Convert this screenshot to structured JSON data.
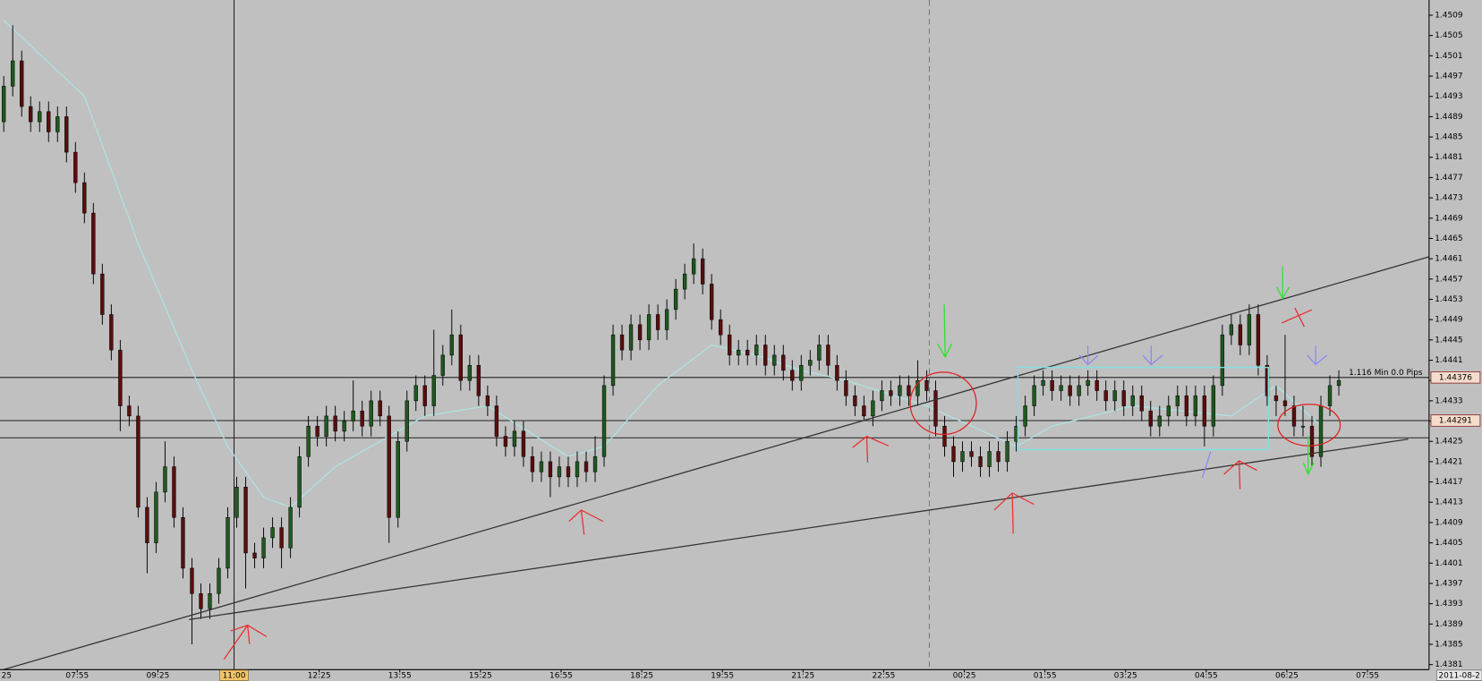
{
  "chart_data": {
    "type": "candlestick",
    "up_color": "#1f5a1f",
    "down_color": "#5c0d0d",
    "open": [
      1.4488,
      1.4495,
      1.45,
      1.4491,
      1.4488,
      1.449,
      1.4486,
      1.4489,
      1.4482,
      1.4476,
      1.447,
      1.4458,
      1.445,
      1.4443,
      1.4432,
      1.443,
      1.4412,
      1.4405,
      1.4415,
      1.442,
      1.441,
      1.44,
      1.4395,
      1.4392,
      1.4395,
      1.44,
      1.441,
      1.4416,
      1.4403,
      1.4402,
      1.4406,
      1.4408,
      1.4404,
      1.4412,
      1.4422,
      1.4428,
      1.4426,
      1.443,
      1.4427,
      1.4429,
      1.4431,
      1.4428,
      1.4433,
      1.443,
      1.441,
      1.4425,
      1.4433,
      1.4436,
      1.4432,
      1.4438,
      1.4442,
      1.4446,
      1.4437,
      1.444,
      1.4434,
      1.4432,
      1.4426,
      1.4424,
      1.4427,
      1.4422,
      1.4419,
      1.4421,
      1.4418,
      1.442,
      1.4418,
      1.4421,
      1.4419,
      1.4422,
      1.4436,
      1.4446,
      1.4443,
      1.4448,
      1.4445,
      1.445,
      1.4447,
      1.4451,
      1.4455,
      1.4458,
      1.4461,
      1.4456,
      1.4449,
      1.4446,
      1.4442,
      1.4443,
      1.4442,
      1.4444,
      1.444,
      1.4442,
      1.4439,
      1.4437,
      1.444,
      1.4441,
      1.4444,
      1.444,
      1.4437,
      1.4434,
      1.4432,
      1.443,
      1.4433,
      1.4435,
      1.4434,
      1.4436,
      1.4434,
      1.4437,
      1.4435,
      1.4428,
      1.4424,
      1.4421,
      1.4423,
      1.4422,
      1.442,
      1.4423,
      1.4421,
      1.4425,
      1.4428,
      1.4432,
      1.4436,
      1.4437,
      1.4435,
      1.4436,
      1.4434,
      1.4436,
      1.4437,
      1.4435,
      1.4433,
      1.4435,
      1.4432,
      1.4434,
      1.4431,
      1.4428,
      1.443,
      1.4432,
      1.4434,
      1.443,
      1.4434,
      1.4428,
      1.4436,
      1.4446,
      1.4448,
      1.4444,
      1.445,
      1.444,
      1.4434,
      1.4433,
      1.4432,
      1.4428,
      1.4428,
      1.4422,
      1.4432,
      1.4436
    ],
    "high": [
      1.4497,
      1.4507,
      1.4502,
      1.4493,
      1.4492,
      1.4492,
      1.4491,
      1.4491,
      1.4484,
      1.4478,
      1.4472,
      1.446,
      1.4452,
      1.4445,
      1.4434,
      1.4432,
      1.4414,
      1.4417,
      1.4425,
      1.4422,
      1.4412,
      1.4402,
      1.4397,
      1.4397,
      1.4402,
      1.4412,
      1.4418,
      1.4418,
      1.4405,
      1.4408,
      1.441,
      1.441,
      1.4414,
      1.4424,
      1.443,
      1.443,
      1.4432,
      1.4432,
      1.4431,
      1.4437,
      1.4433,
      1.4435,
      1.4435,
      1.4432,
      1.4427,
      1.4435,
      1.4438,
      1.4438,
      1.4447,
      1.4444,
      1.4451,
      1.4448,
      1.4442,
      1.4442,
      1.4436,
      1.4434,
      1.4428,
      1.4429,
      1.4429,
      1.4424,
      1.4423,
      1.4423,
      1.4422,
      1.4422,
      1.4423,
      1.4423,
      1.4426,
      1.4438,
      1.4448,
      1.4448,
      1.445,
      1.445,
      1.4452,
      1.4452,
      1.4453,
      1.4457,
      1.446,
      1.4464,
      1.4463,
      1.4458,
      1.4451,
      1.4448,
      1.4445,
      1.4445,
      1.4446,
      1.4446,
      1.4444,
      1.4444,
      1.4441,
      1.4442,
      1.4443,
      1.4446,
      1.4446,
      1.4442,
      1.4439,
      1.4436,
      1.4434,
      1.4435,
      1.4437,
      1.4437,
      1.4438,
      1.4438,
      1.4441,
      1.4439,
      1.4437,
      1.443,
      1.4426,
      1.4425,
      1.4425,
      1.4424,
      1.4425,
      1.4425,
      1.4427,
      1.443,
      1.4434,
      1.4438,
      1.4439,
      1.4439,
      1.4438,
      1.4438,
      1.4438,
      1.4439,
      1.4439,
      1.4437,
      1.4437,
      1.4437,
      1.4436,
      1.4436,
      1.4433,
      1.4432,
      1.4434,
      1.4436,
      1.4436,
      1.4436,
      1.4436,
      1.4438,
      1.4448,
      1.445,
      1.445,
      1.4452,
      1.4452,
      1.4442,
      1.4436,
      1.4446,
      1.4434,
      1.4432,
      1.443,
      1.4434,
      1.4438,
      1.4439
    ],
    "low": [
      1.4486,
      1.4493,
      1.4489,
      1.4486,
      1.4486,
      1.4484,
      1.4484,
      1.448,
      1.4474,
      1.4468,
      1.4456,
      1.4448,
      1.4441,
      1.4427,
      1.4428,
      1.441,
      1.4399,
      1.4403,
      1.4413,
      1.4408,
      1.4398,
      1.4385,
      1.439,
      1.439,
      1.4393,
      1.4398,
      1.4408,
      1.4396,
      1.44,
      1.44,
      1.4404,
      1.44,
      1.4402,
      1.441,
      1.442,
      1.4424,
      1.4424,
      1.4425,
      1.4425,
      1.4427,
      1.4426,
      1.4426,
      1.4428,
      1.4405,
      1.4408,
      1.4423,
      1.4431,
      1.443,
      1.443,
      1.4436,
      1.444,
      1.4435,
      1.4435,
      1.4432,
      1.443,
      1.4424,
      1.4422,
      1.4422,
      1.442,
      1.4417,
      1.4417,
      1.4414,
      1.4416,
      1.4416,
      1.4416,
      1.4417,
      1.4417,
      1.442,
      1.4434,
      1.4441,
      1.4441,
      1.4443,
      1.4443,
      1.4445,
      1.4445,
      1.4449,
      1.4453,
      1.4456,
      1.4454,
      1.4447,
      1.4444,
      1.444,
      1.444,
      1.444,
      1.444,
      1.4438,
      1.4438,
      1.4437,
      1.4435,
      1.4435,
      1.4438,
      1.4439,
      1.4438,
      1.4435,
      1.4432,
      1.443,
      1.4429,
      1.4428,
      1.4431,
      1.4432,
      1.4432,
      1.4432,
      1.4432,
      1.4433,
      1.4426,
      1.4422,
      1.4418,
      1.4419,
      1.442,
      1.4418,
      1.4418,
      1.4419,
      1.4419,
      1.4423,
      1.4426,
      1.443,
      1.4434,
      1.4433,
      1.4433,
      1.4432,
      1.4432,
      1.4434,
      1.4433,
      1.4431,
      1.4431,
      1.443,
      1.443,
      1.4429,
      1.4426,
      1.4426,
      1.4428,
      1.443,
      1.4428,
      1.4428,
      1.4424,
      1.4426,
      1.4434,
      1.4444,
      1.4442,
      1.4442,
      1.4438,
      1.4432,
      1.443,
      1.443,
      1.4426,
      1.4426,
      1.442,
      1.442,
      1.443,
      1.4434
    ],
    "close": [
      1.4495,
      1.45,
      1.4491,
      1.4488,
      1.449,
      1.4486,
      1.4489,
      1.4482,
      1.4476,
      1.447,
      1.4458,
      1.445,
      1.4443,
      1.4432,
      1.443,
      1.4412,
      1.4405,
      1.4415,
      1.442,
      1.441,
      1.44,
      1.4395,
      1.4392,
      1.4395,
      1.44,
      1.441,
      1.4416,
      1.4403,
      1.4402,
      1.4406,
      1.4408,
      1.4404,
      1.4412,
      1.4422,
      1.4428,
      1.4426,
      1.443,
      1.4427,
      1.4429,
      1.4431,
      1.4428,
      1.4433,
      1.443,
      1.441,
      1.4425,
      1.4433,
      1.4436,
      1.4432,
      1.4438,
      1.4442,
      1.4446,
      1.4437,
      1.444,
      1.4434,
      1.4432,
      1.4426,
      1.4424,
      1.4427,
      1.4422,
      1.4419,
      1.4421,
      1.4418,
      1.442,
      1.4418,
      1.4421,
      1.4419,
      1.4422,
      1.4436,
      1.4446,
      1.4443,
      1.4448,
      1.4445,
      1.445,
      1.4447,
      1.4451,
      1.4455,
      1.4458,
      1.4461,
      1.4456,
      1.4449,
      1.4446,
      1.4442,
      1.4443,
      1.4442,
      1.4444,
      1.444,
      1.4442,
      1.4439,
      1.4437,
      1.444,
      1.4441,
      1.4444,
      1.444,
      1.4437,
      1.4434,
      1.4432,
      1.443,
      1.4433,
      1.4435,
      1.4434,
      1.4436,
      1.4434,
      1.4437,
      1.4435,
      1.4428,
      1.4424,
      1.4421,
      1.4423,
      1.4422,
      1.442,
      1.4423,
      1.4421,
      1.4425,
      1.4428,
      1.4432,
      1.4436,
      1.4437,
      1.4435,
      1.4436,
      1.4434,
      1.4436,
      1.4437,
      1.4435,
      1.4433,
      1.4435,
      1.4432,
      1.4434,
      1.4431,
      1.4428,
      1.443,
      1.4432,
      1.4434,
      1.443,
      1.4434,
      1.4428,
      1.4436,
      1.4446,
      1.4448,
      1.4444,
      1.445,
      1.444,
      1.4434,
      1.4433,
      1.4432,
      1.4428,
      1.4428,
      1.4422,
      1.4432,
      1.4436,
      1.4437
    ],
    "ma": {
      "color": "#aee3e3",
      "x": [
        0,
        9,
        15,
        21,
        25,
        29,
        32,
        37,
        47,
        54,
        63,
        67,
        73,
        79,
        84,
        89,
        94,
        103,
        108,
        113,
        117,
        126,
        137,
        142,
        147
      ],
      "values": [
        1.4508,
        1.4493,
        1.4464,
        1.4439,
        1.4424,
        1.4414,
        1.4412,
        1.442,
        1.443,
        1.4432,
        1.4422,
        1.4424,
        1.4436,
        1.4444,
        1.4442,
        1.4439,
        1.4437,
        1.4432,
        1.4428,
        1.4424,
        1.4428,
        1.4432,
        1.443,
        1.4436,
        1.4428
      ]
    },
    "xlim": [
      -0.42,
      159.07
    ],
    "xticks": [
      {
        "value": -0.8,
        "label": "25"
      },
      {
        "value": 8.2,
        "label": "07:55"
      },
      {
        "value": 17.2,
        "label": "09:25"
      },
      {
        "value": 35.2,
        "label": "12:25"
      },
      {
        "value": 44.2,
        "label": "13:55"
      },
      {
        "value": 53.2,
        "label": "15:25"
      },
      {
        "value": 62.2,
        "label": "16:55"
      },
      {
        "value": 71.2,
        "label": "18:25"
      },
      {
        "value": 80.2,
        "label": "19:55"
      },
      {
        "value": 89.2,
        "label": "21:25"
      },
      {
        "value": 98.2,
        "label": "22:55"
      },
      {
        "value": 107.2,
        "label": "00:25"
      },
      {
        "value": 116.2,
        "label": "01:55"
      },
      {
        "value": 125.2,
        "label": "03:25"
      },
      {
        "value": 134.2,
        "label": "04:55"
      },
      {
        "value": 143.2,
        "label": "06:25"
      },
      {
        "value": 152.2,
        "label": "07:55"
      }
    ],
    "crosshair": {
      "value": 25.7,
      "label": "11:00"
    },
    "session_line": 103.3,
    "ylim": [
      1.438,
      1.4512
    ],
    "yticks": [
      1.4381,
      1.4385,
      1.4389,
      1.4393,
      1.4397,
      1.4401,
      1.4405,
      1.4409,
      1.4413,
      1.4417,
      1.4421,
      1.4425,
      1.4429,
      1.4433,
      1.4437,
      1.4441,
      1.4445,
      1.4449,
      1.4453,
      1.4457,
      1.4461,
      1.4465,
      1.4469,
      1.4473,
      1.4477,
      1.4481,
      1.4485,
      1.4489,
      1.4493,
      1.4497,
      1.4501,
      1.4505,
      1.4509
    ],
    "marked_prices": [
      1.44376,
      1.44291
    ],
    "hlines": [
      1.44257
    ],
    "annotation": "1.116 Min 0.0 Pips",
    "date_label": "2011-08-2"
  }
}
